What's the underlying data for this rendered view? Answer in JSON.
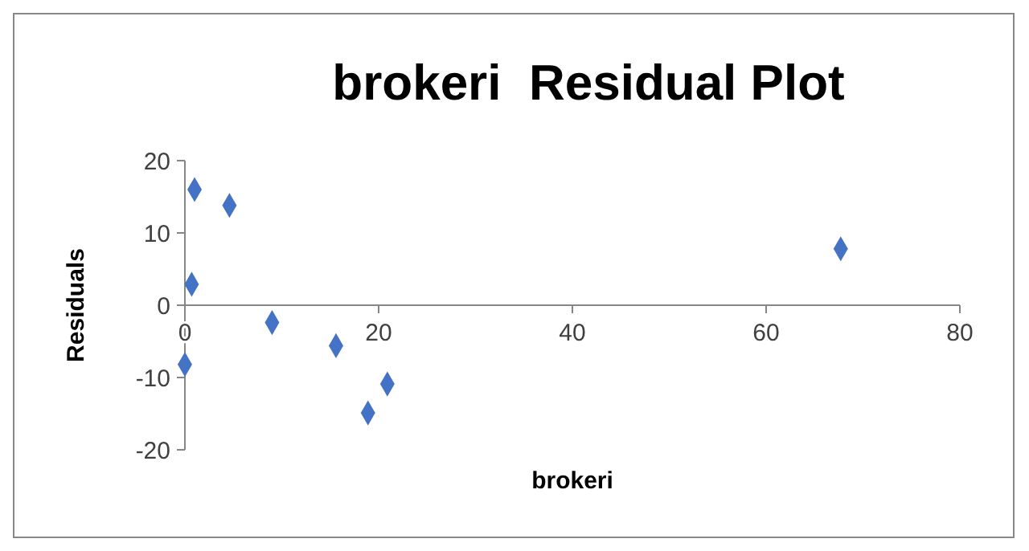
{
  "chart_data": {
    "type": "scatter",
    "title": "brokeri  Residual Plot",
    "xlabel": "brokeri",
    "ylabel": "Residuals",
    "series": [
      {
        "color": "#4472c4",
        "x": [
          1.0,
          4.6,
          0.7,
          9,
          15.6,
          20.9,
          18.9,
          0,
          67.7
        ],
        "values": [
          16,
          13.8,
          2.9,
          -2.4,
          -5.6,
          -10.9,
          -14.9,
          -8.2,
          7.8
        ]
      }
    ],
    "xlim": [
      0,
      80
    ],
    "xticks": [
      0,
      20,
      40,
      60,
      80
    ],
    "ylim": [
      -20,
      20
    ],
    "yticks": [
      -20,
      -10,
      0,
      10,
      20
    ],
    "marker": "diamond",
    "grid": false
  }
}
